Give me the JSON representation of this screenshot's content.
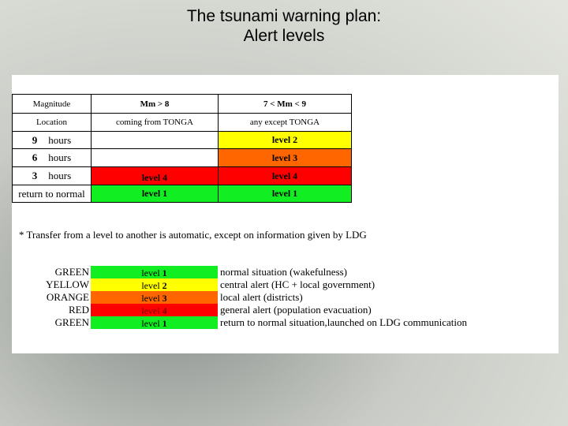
{
  "title": [
    "The tsunami warning plan:",
    "Alert levels"
  ],
  "table": {
    "header": [
      "Magnitude",
      "Mm > 8",
      "7 < Mm < 9"
    ],
    "location": [
      "Location",
      "coming from TONGA",
      "any except TONGA"
    ],
    "rows": [
      {
        "number": "9",
        "unit": "hours",
        "cells": [
          {
            "color": "#ffffff"
          },
          {
            "text": "level 2",
            "color": "#ffff00"
          }
        ]
      },
      {
        "number": "6",
        "unit": "hours",
        "cells": [
          {
            "color": "#ffffff"
          },
          {
            "text": "level 3",
            "color": "#ff6600"
          }
        ]
      },
      {
        "number": "3",
        "unit": "hours",
        "cells": [
          {
            "text": "level 4",
            "color": "#ff0000"
          },
          {
            "text": "level 4",
            "color": "#ff0000"
          }
        ]
      },
      {
        "label": "return to normal",
        "cells": [
          {
            "text": "level 1",
            "color": "#11ee22"
          },
          {
            "text": "level 1",
            "color": "#11ee22"
          }
        ]
      }
    ]
  },
  "note": "*  Transfer from a level to another is automatic, except on information given by LDG",
  "legend": [
    {
      "name": "GREEN",
      "word": "level",
      "number": "1",
      "color": "#11ee22",
      "description": "normal situation (wakefulness)"
    },
    {
      "name": "YELLOW",
      "word": "level",
      "number": "2",
      "color": "#ffff00",
      "description": "central alert (HC + local government)"
    },
    {
      "name": "ORANGE",
      "word": "level",
      "number": "3",
      "color": "#ff6600",
      "description": "local alert (districts)"
    },
    {
      "name": "RED",
      "word": "level",
      "number": "4",
      "color": "#ff0000",
      "description": "general alert (population evacuation)"
    },
    {
      "name": "GREEN",
      "word": "level",
      "number": "1",
      "color": "#11ee22",
      "description": "return to normal situation,launched on LDG communication"
    }
  ]
}
